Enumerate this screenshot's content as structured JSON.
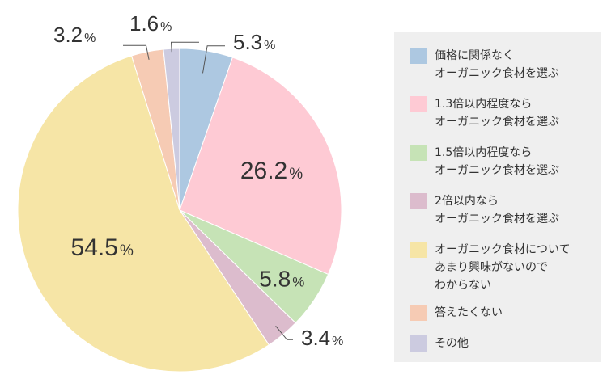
{
  "chart_data": {
    "type": "pie",
    "unit": "%",
    "slices": [
      {
        "label": "価格に関係なく\nオーガニック食材を選ぶ",
        "value": 5.3,
        "display": "5.3",
        "color": "#adc8e1"
      },
      {
        "label": "1.3倍以内程度なら\nオーガニック食材を選ぶ",
        "value": 26.2,
        "display": "26.2",
        "color": "#fecad4"
      },
      {
        "label": "1.5倍以内程度なら\nオーガニック食材を選ぶ",
        "value": 5.8,
        "display": "5.8",
        "color": "#c6e3b6"
      },
      {
        "label": "2倍以内なら\nオーガニック食材を選ぶ",
        "value": 3.4,
        "display": "3.4",
        "color": "#dcbccd"
      },
      {
        "label": "オーガニック食材について\nあまり興味がないので\nわからない",
        "value": 54.5,
        "display": "54.5",
        "color": "#f6e5a6"
      },
      {
        "label": "答えたくない",
        "value": 3.2,
        "display": "3.2",
        "color": "#f6cbb4"
      },
      {
        "label": "その他",
        "value": 1.6,
        "display": "1.6",
        "color": "#cccbe0"
      }
    ]
  }
}
